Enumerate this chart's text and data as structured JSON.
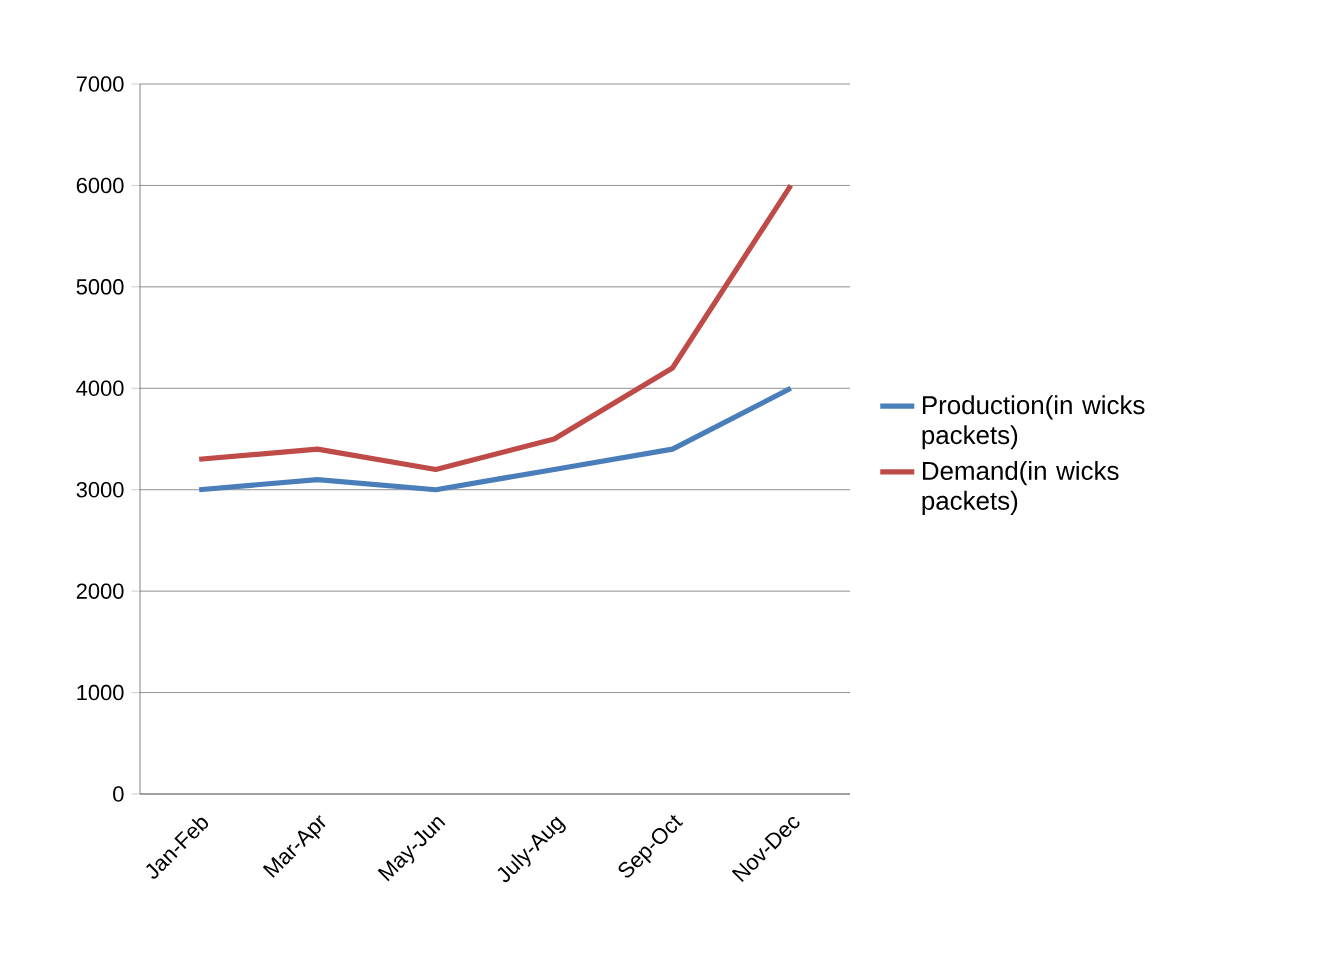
{
  "chart_data": {
    "type": "line",
    "categories": [
      "Jan-Feb",
      "Mar-Apr",
      "May-Jun",
      "July-Aug",
      "Sep-Oct",
      "Nov-Dec"
    ],
    "series": [
      {
        "name": "Production(in wicks packets)",
        "color": "#4a7ebb",
        "values": [
          3000,
          3100,
          3000,
          3200,
          3400,
          4000
        ]
      },
      {
        "name": "Demand(in wicks packets)",
        "color": "#be4b48",
        "values": [
          3300,
          3400,
          3200,
          3500,
          4200,
          6000
        ]
      }
    ],
    "ylim": [
      0,
      7000
    ],
    "yticks": [
      0,
      1000,
      2000,
      3000,
      4000,
      5000,
      6000,
      7000
    ],
    "grid": "y",
    "legend": "right",
    "marker": "none",
    "line_style": "solid"
  }
}
